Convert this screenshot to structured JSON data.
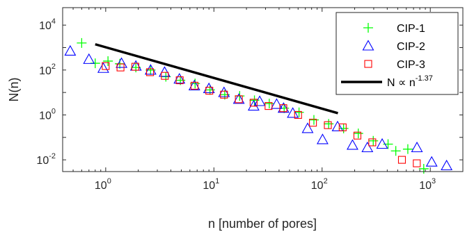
{
  "chart_data": {
    "type": "scatter",
    "xlabel": "n [number of pores]",
    "ylabel": "N(n)",
    "xscale": "log",
    "yscale": "log",
    "xlim": [
      0.4,
      2000
    ],
    "ylim": [
      0.003,
      60000
    ],
    "xticks": [
      {
        "base": "10",
        "exp": "0",
        "value": 1
      },
      {
        "base": "10",
        "exp": "1",
        "value": 10
      },
      {
        "base": "10",
        "exp": "2",
        "value": 100
      },
      {
        "base": "10",
        "exp": "3",
        "value": 1000
      }
    ],
    "yticks": [
      {
        "base": "10",
        "exp": "-2",
        "value": 0.01
      },
      {
        "base": "10",
        "exp": "0",
        "value": 1
      },
      {
        "base": "10",
        "exp": "2",
        "value": 100
      },
      {
        "base": "10",
        "exp": "4",
        "value": 10000
      }
    ],
    "legend_position": "top-right",
    "series": [
      {
        "name": "CIP-1",
        "marker": "plus",
        "color": "#00ff00",
        "points": [
          {
            "x": 0.6,
            "y": 1600
          },
          {
            "x": 0.8,
            "y": 200
          },
          {
            "x": 1.05,
            "y": 250
          },
          {
            "x": 1.35,
            "y": 190
          },
          {
            "x": 1.9,
            "y": 130
          },
          {
            "x": 2.6,
            "y": 100
          },
          {
            "x": 3.6,
            "y": 50
          },
          {
            "x": 4.9,
            "y": 35
          },
          {
            "x": 6.7,
            "y": 25
          },
          {
            "x": 9.2,
            "y": 13
          },
          {
            "x": 12.6,
            "y": 8
          },
          {
            "x": 17.3,
            "y": 7
          },
          {
            "x": 23.7,
            "y": 4.5
          },
          {
            "x": 32.5,
            "y": 3.2
          },
          {
            "x": 44.6,
            "y": 2.0
          },
          {
            "x": 61.2,
            "y": 1.3
          },
          {
            "x": 84,
            "y": 0.6
          },
          {
            "x": 115,
            "y": 0.4
          },
          {
            "x": 158,
            "y": 0.25
          },
          {
            "x": 216,
            "y": 0.15
          },
          {
            "x": 297,
            "y": 0.07
          },
          {
            "x": 407,
            "y": 0.05
          },
          {
            "x": 480,
            "y": 0.025
          },
          {
            "x": 620,
            "y": 0.03
          },
          {
            "x": 870,
            "y": 0.004
          }
        ]
      },
      {
        "name": "CIP-2",
        "marker": "triangle",
        "color": "#0000ff",
        "points": [
          {
            "x": 0.47,
            "y": 700
          },
          {
            "x": 0.7,
            "y": 300
          },
          {
            "x": 0.95,
            "y": 120
          },
          {
            "x": 1.4,
            "y": 200
          },
          {
            "x": 1.9,
            "y": 150
          },
          {
            "x": 2.6,
            "y": 100
          },
          {
            "x": 3.5,
            "y": 80
          },
          {
            "x": 4.8,
            "y": 40
          },
          {
            "x": 6.6,
            "y": 20
          },
          {
            "x": 9.0,
            "y": 15
          },
          {
            "x": 12.4,
            "y": 10
          },
          {
            "x": 17.0,
            "y": 5
          },
          {
            "x": 23.3,
            "y": 2.5
          },
          {
            "x": 26.5,
            "y": 4.0
          },
          {
            "x": 38.0,
            "y": 3.0
          },
          {
            "x": 44.0,
            "y": 2.0
          },
          {
            "x": 53.6,
            "y": 1.2
          },
          {
            "x": 73.5,
            "y": 0.25
          },
          {
            "x": 101,
            "y": 0.08
          },
          {
            "x": 139,
            "y": 0.3
          },
          {
            "x": 191,
            "y": 0.045
          },
          {
            "x": 262,
            "y": 0.035
          },
          {
            "x": 359,
            "y": 0.05
          },
          {
            "x": 753,
            "y": 0.035
          },
          {
            "x": 1030,
            "y": 0.008
          },
          {
            "x": 1415,
            "y": 0.0055
          }
        ]
      },
      {
        "name": "CIP-3",
        "marker": "square",
        "color": "#ff0000",
        "points": [
          {
            "x": 1.0,
            "y": 150
          },
          {
            "x": 1.37,
            "y": 130
          },
          {
            "x": 1.88,
            "y": 140
          },
          {
            "x": 2.57,
            "y": 80
          },
          {
            "x": 3.52,
            "y": 55
          },
          {
            "x": 4.83,
            "y": 35
          },
          {
            "x": 6.62,
            "y": 20
          },
          {
            "x": 9.07,
            "y": 12
          },
          {
            "x": 12.4,
            "y": 8
          },
          {
            "x": 17.0,
            "y": 5
          },
          {
            "x": 23.3,
            "y": 3.5
          },
          {
            "x": 32.0,
            "y": 2.5
          },
          {
            "x": 43.8,
            "y": 2.0
          },
          {
            "x": 60.0,
            "y": 1.0
          },
          {
            "x": 82.3,
            "y": 0.45
          },
          {
            "x": 113,
            "y": 0.35
          },
          {
            "x": 155,
            "y": 0.28
          },
          {
            "x": 212,
            "y": 0.12
          },
          {
            "x": 291,
            "y": 0.06
          },
          {
            "x": 547,
            "y": 0.01
          },
          {
            "x": 750,
            "y": 0.007
          }
        ]
      },
      {
        "name": "N ∝ n",
        "name_exponent": "-1.37",
        "marker": "line",
        "color": "#000000",
        "points": [
          {
            "x": 0.8,
            "y": 1400
          },
          {
            "x": 140,
            "y": 1.2
          }
        ]
      }
    ]
  }
}
